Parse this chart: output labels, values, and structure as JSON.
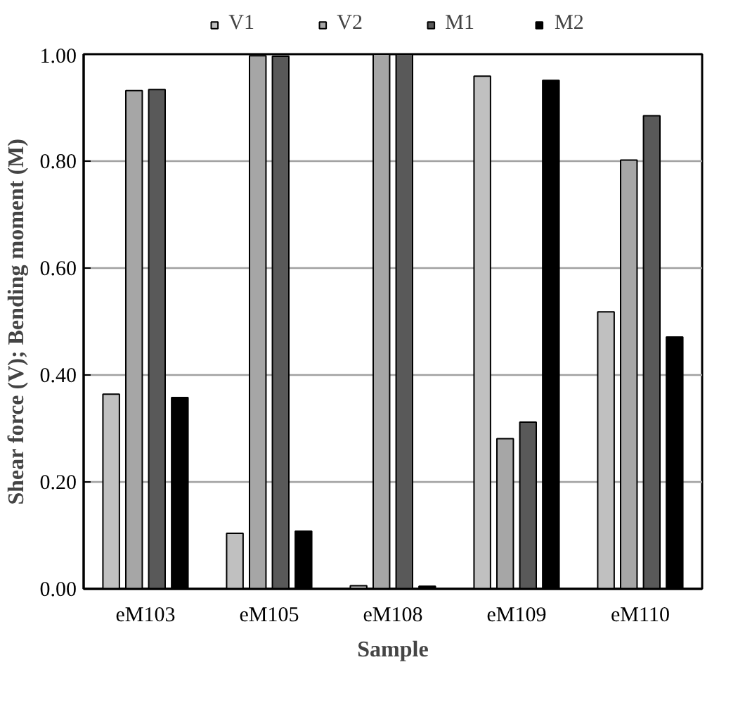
{
  "chart_data": {
    "type": "bar",
    "xlabel": "Sample",
    "ylabel": "Shear force (V); Bending moment (M)",
    "categories": [
      "eM103",
      "eM105",
      "eM108",
      "eM109",
      "eM110"
    ],
    "series": [
      {
        "name": "V1",
        "color": "#c0c0c0",
        "values": [
          0.364,
          0.104,
          0.006,
          0.959,
          0.518
        ]
      },
      {
        "name": "V2",
        "color": "#a6a6a6",
        "values": [
          0.932,
          0.997,
          1.0,
          0.281,
          0.802
        ]
      },
      {
        "name": "M1",
        "color": "#595959",
        "values": [
          0.934,
          0.996,
          1.0,
          0.312,
          0.885
        ]
      },
      {
        "name": "M2",
        "color": "#000000",
        "values": [
          0.358,
          0.108,
          0.005,
          0.951,
          0.471
        ]
      }
    ],
    "ylim": [
      0,
      1
    ],
    "yticks": [
      {
        "value": 0,
        "label": "0.00"
      },
      {
        "value": 0.2,
        "label": "0.20"
      },
      {
        "value": 0.4,
        "label": "0.40"
      },
      {
        "value": 0.6,
        "label": "0.60"
      },
      {
        "value": 0.8,
        "label": "0.80"
      },
      {
        "value": 1,
        "label": "1.00"
      }
    ],
    "grid": "y",
    "legend": "top"
  }
}
